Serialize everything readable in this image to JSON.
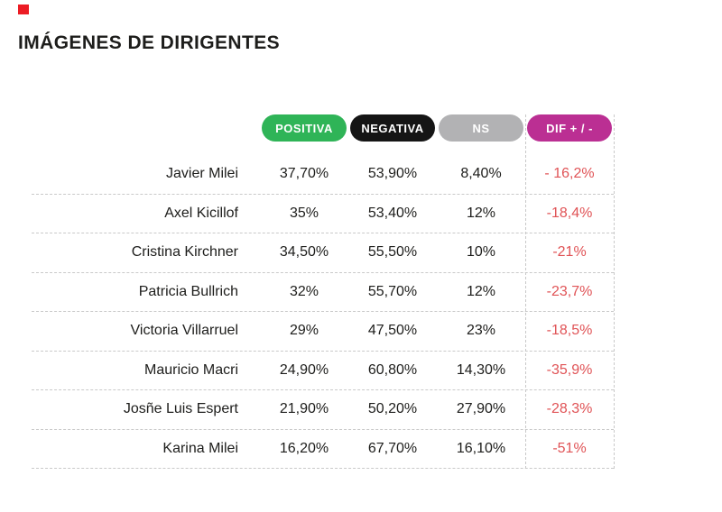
{
  "page": {
    "title": "IMÁGENES DE DIRIGENTES"
  },
  "colors": {
    "accent_square": "#ec1c24",
    "positiva_pill": "#2fb457",
    "negativa_pill": "#151515",
    "ns_pill": "#b2b2b4",
    "dif_pill": "#bb2f93",
    "dif_text": "#e05356"
  },
  "table": {
    "columns": [
      {
        "key": "positiva",
        "label": "POSITIVA"
      },
      {
        "key": "negativa",
        "label": "NEGATIVA"
      },
      {
        "key": "ns",
        "label": "NS"
      },
      {
        "key": "dif",
        "label": "DIF + / -"
      }
    ],
    "rows": [
      {
        "name": "Javier Milei",
        "positiva": "37,70%",
        "negativa": "53,90%",
        "ns": "8,40%",
        "dif": "- 16,2%"
      },
      {
        "name": "Axel Kicillof",
        "positiva": "35%",
        "negativa": "53,40%",
        "ns": "12%",
        "dif": "-18,4%"
      },
      {
        "name": "Cristina Kirchner",
        "positiva": "34,50%",
        "negativa": "55,50%",
        "ns": "10%",
        "dif": "-21%"
      },
      {
        "name": "Patricia Bullrich",
        "positiva": "32%",
        "negativa": "55,70%",
        "ns": "12%",
        "dif": "-23,7%"
      },
      {
        "name": "Victoria Villarruel",
        "positiva": "29%",
        "negativa": "47,50%",
        "ns": "23%",
        "dif": "-18,5%"
      },
      {
        "name": "Mauricio Macri",
        "positiva": "24,90%",
        "negativa": "60,80%",
        "ns": "14,30%",
        "dif": "-35,9%"
      },
      {
        "name": "Josñe Luis Espert",
        "positiva": "21,90%",
        "negativa": "50,20%",
        "ns": "27,90%",
        "dif": "-28,3%"
      },
      {
        "name": "Karina Milei",
        "positiva": "16,20%",
        "negativa": "67,70%",
        "ns": "16,10%",
        "dif": "-51%"
      }
    ]
  },
  "chart_data": {
    "type": "table",
    "title": "IMÁGENES DE DIRIGENTES",
    "columns": [
      "",
      "POSITIVA",
      "NEGATIVA",
      "NS",
      "DIF + / -"
    ],
    "rows": [
      [
        "Javier Milei",
        "37,70%",
        "53,90%",
        "8,40%",
        "- 16,2%"
      ],
      [
        "Axel Kicillof",
        "35%",
        "53,40%",
        "12%",
        "-18,4%"
      ],
      [
        "Cristina Kirchner",
        "34,50%",
        "55,50%",
        "10%",
        "-21%"
      ],
      [
        "Patricia Bullrich",
        "32%",
        "55,70%",
        "12%",
        "-23,7%"
      ],
      [
        "Victoria Villarruel",
        "29%",
        "47,50%",
        "23%",
        "-18,5%"
      ],
      [
        "Mauricio Macri",
        "24,90%",
        "60,80%",
        "14,30%",
        "-35,9%"
      ],
      [
        "Josñe Luis Espert",
        "21,90%",
        "50,20%",
        "27,90%",
        "-28,3%"
      ],
      [
        "Karina Milei",
        "16,20%",
        "67,70%",
        "16,10%",
        "-51%"
      ]
    ],
    "notes": "DIF column values shown in red; header pills colored green/black/gray/magenta; dashed row separators and dashed vertical borders framing the DIF column"
  }
}
